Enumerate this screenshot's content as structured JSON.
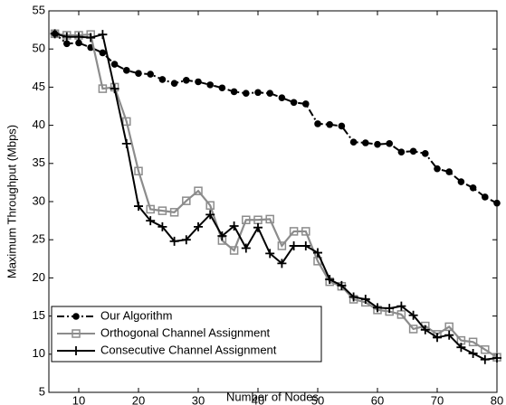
{
  "chart_data": {
    "type": "line",
    "xlabel": "Number of Nodes",
    "ylabel": "Maximum Throughput (Mbps)",
    "x": [
      6,
      8,
      10,
      12,
      14,
      16,
      18,
      20,
      22,
      24,
      26,
      28,
      30,
      32,
      34,
      36,
      38,
      40,
      42,
      44,
      46,
      48,
      50,
      52,
      54,
      56,
      58,
      60,
      62,
      64,
      66,
      68,
      70,
      72,
      74,
      76,
      78,
      80
    ],
    "series": [
      {
        "name": "Our Algorithm",
        "color": "#000000",
        "marker": "circle",
        "line_style": "dash-dot",
        "values": [
          52,
          50.7,
          50.8,
          50.2,
          49.5,
          48,
          47.2,
          46.8,
          46.7,
          46,
          45.5,
          45.9,
          45.7,
          45.3,
          44.9,
          44.4,
          44.2,
          44.3,
          44.2,
          43.6,
          43,
          42.8,
          40.2,
          40.1,
          39.9,
          37.8,
          37.7,
          37.5,
          37.6,
          36.5,
          36.6,
          36.3,
          34.3,
          33.9,
          32.6,
          31.8,
          30.6,
          29.8
        ]
      },
      {
        "name": "Orthogonal Channel Assignment",
        "color": "#8c8c8c",
        "marker": "square",
        "line_style": "solid",
        "values": [
          52,
          51.8,
          51.8,
          51.9,
          44.8,
          45,
          40.5,
          34,
          29,
          28.8,
          28.6,
          30.1,
          31.4,
          29.5,
          24.9,
          23.6,
          27.6,
          27.6,
          27.7,
          24.2,
          26.1,
          26.1,
          22.2,
          19.5,
          18.9,
          17.2,
          16.8,
          15.8,
          15.6,
          15.2,
          13.3,
          13.7,
          12.6,
          13.6,
          11.8,
          11.6,
          10.6,
          9.6
        ]
      },
      {
        "name": "Consecutive Channel Assignment",
        "color": "#000000",
        "marker": "plus",
        "line_style": "solid",
        "values": [
          52,
          51.6,
          51.6,
          51.5,
          51.9,
          44.8,
          37.6,
          29.4,
          27.5,
          26.7,
          24.8,
          25,
          26.7,
          28.3,
          25.5,
          26.8,
          23.9,
          26.6,
          23.2,
          21.9,
          24.2,
          24.2,
          23.3,
          19.8,
          19,
          17.5,
          17.2,
          16.1,
          16,
          16.3,
          15.1,
          13.2,
          12.2,
          12.5,
          10.9,
          10.1,
          9.3,
          9.5
        ]
      }
    ],
    "xlim": [
      5,
      80
    ],
    "xticks": [
      10,
      20,
      30,
      40,
      50,
      60,
      70,
      80
    ],
    "ylim": [
      5,
      55
    ],
    "yticks": [
      5,
      10,
      15,
      20,
      25,
      30,
      35,
      40,
      45,
      50,
      55
    ],
    "grid": false,
    "legend": "lower left"
  }
}
